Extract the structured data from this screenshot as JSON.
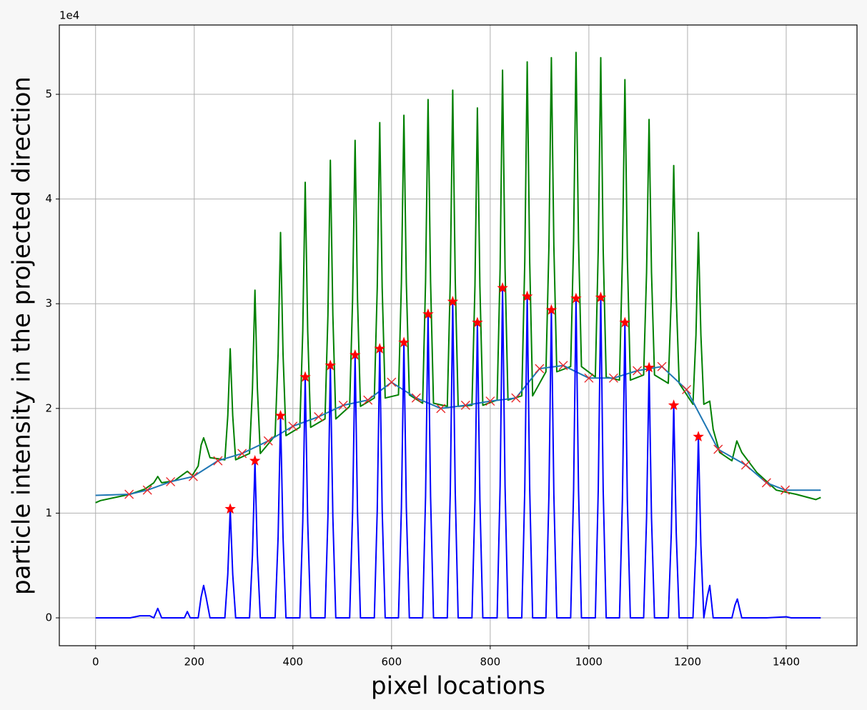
{
  "chart_data": {
    "type": "line",
    "xlabel": "pixel locations",
    "ylabel": "particle intensity in the projected direction",
    "y_offset_text": "1e4",
    "xlim": [
      -73.5,
      1543.5
    ],
    "ylim": [
      -2660,
      56620
    ],
    "xticks": [
      0,
      200,
      400,
      600,
      800,
      1000,
      1200,
      1400
    ],
    "yticks": [
      0,
      {
        "value": 10000,
        "label": "1"
      },
      {
        "value": 20000,
        "label": "2"
      },
      {
        "value": 30000,
        "label": "3"
      },
      {
        "value": 40000,
        "label": "4"
      },
      {
        "value": 50000,
        "label": "5"
      }
    ],
    "grid": true,
    "series": [
      {
        "color": "#008000",
        "linestyle": "-",
        "x": [
          0,
          10,
          40,
          70,
          100,
          118,
          126,
          134,
          160,
          186,
          196,
          208,
          214,
          219,
          224,
          232,
          248,
          262,
          268,
          273,
          278,
          284,
          312,
          318,
          323,
          328,
          334,
          364,
          370,
          375,
          380,
          386,
          414,
          420,
          425,
          430,
          436,
          465,
          471,
          476,
          481,
          487,
          515,
          521,
          526,
          531,
          537,
          565,
          571,
          576,
          581,
          587,
          614,
          620,
          625,
          630,
          636,
          663,
          669,
          674,
          679,
          685,
          713,
          719,
          724,
          729,
          735,
          763,
          769,
          774,
          779,
          785,
          814,
          820,
          825,
          830,
          836,
          864,
          870,
          875,
          880,
          886,
          913,
          919,
          924,
          929,
          935,
          963,
          969,
          974,
          979,
          985,
          1013,
          1019,
          1024,
          1029,
          1035,
          1062,
          1068,
          1073,
          1078,
          1084,
          1111,
          1117,
          1122,
          1127,
          1133,
          1161,
          1167,
          1172,
          1177,
          1183,
          1211,
          1217,
          1222,
          1227,
          1233,
          1245,
          1252,
          1265,
          1290,
          1300,
          1310,
          1340,
          1380,
          1420,
          1460,
          1470
        ],
        "values": [
          11000,
          11200,
          11500,
          11800,
          12300,
          12900,
          13500,
          12900,
          13100,
          14000,
          13600,
          14500,
          16500,
          17200,
          16500,
          15300,
          15200,
          15100,
          19300,
          25700,
          19300,
          15100,
          15700,
          21900,
          31300,
          21900,
          15700,
          17400,
          25200,
          36800,
          25200,
          17400,
          18200,
          27400,
          41600,
          27400,
          18200,
          19000,
          28900,
          43700,
          28900,
          19000,
          20200,
          30400,
          45600,
          30400,
          20200,
          21000,
          31500,
          47300,
          31500,
          21000,
          21300,
          32000,
          48000,
          32000,
          21300,
          20500,
          32100,
          49500,
          32100,
          20500,
          20200,
          32300,
          50400,
          32300,
          20200,
          20300,
          31700,
          48700,
          31700,
          20300,
          20800,
          33400,
          52300,
          33400,
          20800,
          21200,
          34000,
          53100,
          34000,
          21200,
          23500,
          35500,
          53500,
          35500,
          23500,
          24000,
          36000,
          54000,
          36000,
          24000,
          23000,
          35200,
          53500,
          35200,
          23000,
          22700,
          34400,
          51400,
          34400,
          22700,
          23200,
          33000,
          47600,
          33000,
          23200,
          22400,
          30700,
          43200,
          30700,
          22400,
          20400,
          27000,
          36800,
          27000,
          20400,
          20700,
          18000,
          15800,
          15000,
          16900,
          15800,
          13900,
          12200,
          11800,
          11300,
          11500
        ]
      },
      {
        "color": "#1f77b4",
        "linestyle": "-",
        "x": [
          0,
          68,
          105,
          152,
          198,
          248,
          297,
          350,
          400,
          452,
          502,
          552,
          600,
          650,
          700,
          750,
          800,
          852,
          900,
          948,
          1000,
          1050,
          1098,
          1148,
          1198,
          1262,
          1318,
          1360,
          1398,
          1470
        ],
        "values": [
          11700,
          11800,
          12200,
          13000,
          13500,
          15000,
          15700,
          16900,
          18300,
          19200,
          20300,
          20800,
          22500,
          21000,
          20000,
          20300,
          20700,
          21000,
          23800,
          24100,
          22900,
          22900,
          23600,
          24000,
          21800,
          16100,
          14600,
          12900,
          12200,
          12200
        ]
      },
      {
        "color": "#0000ff",
        "linestyle": "-",
        "x": [
          0,
          70,
          90,
          110,
          118,
          126,
          134,
          180,
          186,
          192,
          208,
          214,
          219,
          224,
          232,
          262,
          268,
          273,
          278,
          284,
          312,
          318,
          323,
          328,
          334,
          364,
          370,
          375,
          380,
          386,
          414,
          420,
          425,
          430,
          436,
          465,
          471,
          476,
          481,
          487,
          515,
          521,
          526,
          531,
          537,
          565,
          571,
          576,
          581,
          587,
          614,
          620,
          625,
          630,
          636,
          663,
          669,
          674,
          679,
          685,
          713,
          719,
          724,
          729,
          735,
          763,
          769,
          774,
          779,
          785,
          814,
          820,
          825,
          830,
          836,
          864,
          870,
          875,
          880,
          886,
          913,
          919,
          924,
          929,
          935,
          963,
          969,
          974,
          979,
          985,
          1013,
          1019,
          1024,
          1029,
          1035,
          1062,
          1068,
          1073,
          1078,
          1084,
          1111,
          1117,
          1122,
          1127,
          1133,
          1161,
          1167,
          1172,
          1177,
          1183,
          1211,
          1217,
          1222,
          1227,
          1233,
          1240,
          1245,
          1252,
          1290,
          1296,
          1301,
          1310,
          1360,
          1400,
          1410,
          1470
        ],
        "values": [
          0,
          0,
          200,
          200,
          0,
          900,
          0,
          0,
          600,
          0,
          0,
          2000,
          3100,
          2000,
          0,
          0,
          4160,
          10400,
          4160,
          0,
          0,
          6000,
          15000,
          6000,
          0,
          0,
          7720,
          19300,
          7720,
          0,
          0,
          9200,
          23000,
          9200,
          0,
          0,
          9640,
          24100,
          9640,
          0,
          0,
          10040,
          25100,
          10040,
          0,
          0,
          10280,
          25700,
          10280,
          0,
          0,
          10520,
          26300,
          10520,
          0,
          0,
          11600,
          29000,
          11600,
          0,
          0,
          12080,
          30200,
          12080,
          0,
          0,
          11280,
          28200,
          11280,
          0,
          0,
          12600,
          31500,
          12600,
          0,
          0,
          12280,
          30700,
          12280,
          0,
          0,
          11760,
          29400,
          11760,
          0,
          0,
          12200,
          30500,
          12200,
          0,
          0,
          12240,
          30600,
          12240,
          0,
          0,
          11280,
          28200,
          11280,
          0,
          0,
          9560,
          23900,
          9560,
          0,
          0,
          8120,
          20300,
          8120,
          0,
          0,
          6920,
          17300,
          6920,
          0,
          2000,
          3100,
          0,
          0,
          1200,
          1800,
          0,
          0,
          100,
          0,
          0
        ]
      },
      {
        "color": "#e8282a",
        "marker": "x",
        "x": [
          68,
          105,
          152,
          198,
          248,
          297,
          350,
          400,
          452,
          502,
          552,
          600,
          650,
          700,
          750,
          800,
          852,
          900,
          948,
          1000,
          1050,
          1098,
          1148,
          1198,
          1262,
          1318,
          1360,
          1398
        ],
        "values": [
          11800,
          12200,
          13000,
          13500,
          15000,
          15700,
          16900,
          18300,
          19200,
          20300,
          20800,
          22500,
          21000,
          20000,
          20300,
          20700,
          21000,
          23800,
          24100,
          22900,
          22900,
          23600,
          24000,
          21800,
          16100,
          14600,
          12900,
          12200
        ]
      },
      {
        "color": "#ff0000",
        "marker": "*",
        "x": [
          273,
          323,
          375,
          425,
          476,
          526,
          576,
          625,
          674,
          724,
          774,
          825,
          875,
          924,
          974,
          1024,
          1073,
          1122,
          1172,
          1222
        ],
        "values": [
          10400,
          15000,
          19300,
          23000,
          24100,
          25100,
          25700,
          26300,
          29000,
          30200,
          28200,
          31500,
          30700,
          29400,
          30500,
          30600,
          28200,
          23900,
          20300,
          17300
        ]
      }
    ]
  }
}
